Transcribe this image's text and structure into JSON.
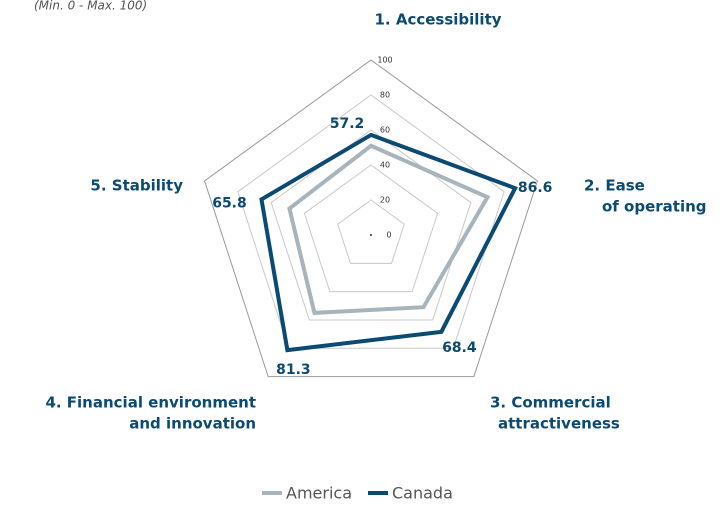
{
  "chart_data": {
    "type": "radar",
    "subtitle": "(Min. 0 - Max. 100)",
    "categories": [
      [
        "1. Accessibility"
      ],
      [
        "2. Ease",
        "of operating"
      ],
      [
        "3. Commercial",
        "attractiveness"
      ],
      [
        "4. Financial environment",
        "and innovation"
      ],
      [
        "5. Stability"
      ]
    ],
    "series": [
      {
        "name": "America",
        "color": "#a7b4bb",
        "values": [
          51,
          70,
          51,
          55,
          49
        ]
      },
      {
        "name": "Canada",
        "color": "#0b4a73",
        "values": [
          57.2,
          86.6,
          68.4,
          81.3,
          65.8
        ]
      }
    ],
    "rlim": [
      0,
      100
    ],
    "rticks": [
      0,
      20,
      40,
      60,
      80,
      100
    ],
    "grid": true,
    "legend": "bottom"
  }
}
